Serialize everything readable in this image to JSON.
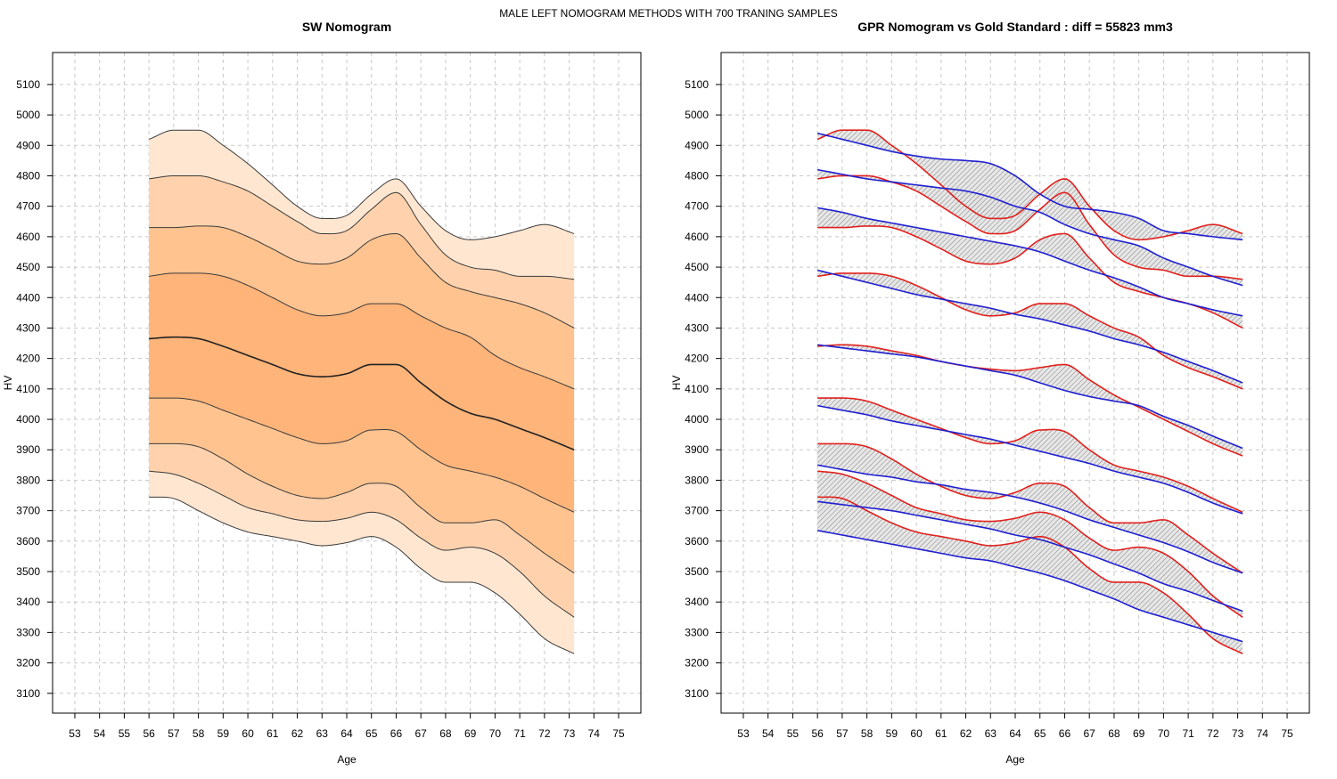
{
  "figure": {
    "main_title": "MALE LEFT NOMOGRAM METHODS WITH 700 TRANING SAMPLES"
  },
  "chart_data": [
    {
      "type": "area",
      "title": "SW Nomogram",
      "xlabel": "Age",
      "ylabel": "HV",
      "xlim": [
        52.1,
        75.9
      ],
      "ylim": [
        3035,
        5205
      ],
      "grid": true,
      "xticks": [
        53,
        54,
        55,
        56,
        57,
        58,
        59,
        60,
        61,
        62,
        63,
        64,
        65,
        66,
        67,
        68,
        69,
        70,
        71,
        72,
        73,
        74,
        75
      ],
      "yticks": [
        3100,
        3200,
        3300,
        3400,
        3500,
        3600,
        3700,
        3800,
        3900,
        4000,
        4100,
        4200,
        4300,
        4400,
        4500,
        4600,
        4700,
        4800,
        4900,
        5000,
        5100
      ],
      "fill_colors": [
        "#ffe6d0",
        "#ffd2ad",
        "#ffc38f",
        "#ffb47a"
      ],
      "x": [
        56,
        57,
        58,
        59,
        60,
        61,
        62,
        63,
        64,
        65,
        66,
        67,
        68,
        69,
        70,
        71,
        72,
        73.2
      ],
      "series": [
        {
          "values": [
            4920,
            4950,
            4950,
            4900,
            4840,
            4770,
            4700,
            4660,
            4670,
            4740,
            4790,
            4700,
            4620,
            4590,
            4600,
            4620,
            4640,
            4610
          ]
        },
        {
          "values": [
            4790,
            4800,
            4800,
            4780,
            4750,
            4700,
            4650,
            4610,
            4620,
            4690,
            4745,
            4640,
            4540,
            4500,
            4490,
            4470,
            4470,
            4460
          ]
        },
        {
          "values": [
            4630,
            4630,
            4635,
            4630,
            4600,
            4560,
            4520,
            4510,
            4530,
            4590,
            4610,
            4530,
            4450,
            4420,
            4400,
            4380,
            4350,
            4300
          ]
        },
        {
          "values": [
            4470,
            4480,
            4480,
            4470,
            4440,
            4400,
            4360,
            4340,
            4350,
            4380,
            4380,
            4340,
            4300,
            4270,
            4210,
            4170,
            4140,
            4100
          ]
        },
        {
          "values": [
            4265,
            4270,
            4265,
            4240,
            4210,
            4180,
            4150,
            4140,
            4150,
            4180,
            4180,
            4120,
            4060,
            4020,
            4000,
            3970,
            3940,
            3900
          ]
        },
        {
          "values": [
            4070,
            4070,
            4060,
            4030,
            4000,
            3970,
            3940,
            3920,
            3930,
            3965,
            3960,
            3900,
            3850,
            3830,
            3810,
            3780,
            3740,
            3695
          ]
        },
        {
          "values": [
            3920,
            3920,
            3910,
            3870,
            3820,
            3780,
            3750,
            3740,
            3760,
            3790,
            3780,
            3710,
            3660,
            3660,
            3670,
            3620,
            3560,
            3495
          ]
        },
        {
          "values": [
            3830,
            3820,
            3790,
            3750,
            3710,
            3690,
            3670,
            3665,
            3675,
            3695,
            3670,
            3610,
            3570,
            3580,
            3560,
            3500,
            3420,
            3350
          ]
        },
        {
          "values": [
            3745,
            3740,
            3700,
            3660,
            3630,
            3615,
            3600,
            3585,
            3595,
            3615,
            3580,
            3510,
            3465,
            3465,
            3430,
            3360,
            3280,
            3230
          ]
        }
      ]
    },
    {
      "type": "line",
      "title": "GPR Nomogram vs Gold Standard : diff = 55823 mm3",
      "xlabel": "Age",
      "ylabel": "HV",
      "xlim": [
        52.1,
        75.9
      ],
      "ylim": [
        3035,
        5205
      ],
      "grid": true,
      "xticks": [
        53,
        54,
        55,
        56,
        57,
        58,
        59,
        60,
        61,
        62,
        63,
        64,
        65,
        66,
        67,
        68,
        69,
        70,
        71,
        72,
        73,
        74,
        75
      ],
      "yticks": [
        3100,
        3200,
        3300,
        3400,
        3500,
        3600,
        3700,
        3800,
        3900,
        4000,
        4100,
        4200,
        4300,
        4400,
        4500,
        4600,
        4700,
        4800,
        4900,
        5000,
        5100
      ],
      "red_color": "#e0201c",
      "blue_color": "#1f1fd0",
      "x": [
        56,
        57,
        58,
        59,
        60,
        61,
        62,
        63,
        64,
        65,
        66,
        67,
        68,
        69,
        70,
        71,
        72,
        73.2
      ],
      "red_series": [
        {
          "values": [
            4920,
            4950,
            4950,
            4900,
            4840,
            4770,
            4700,
            4660,
            4670,
            4740,
            4790,
            4700,
            4620,
            4590,
            4600,
            4620,
            4640,
            4610
          ]
        },
        {
          "values": [
            4790,
            4800,
            4800,
            4780,
            4750,
            4700,
            4650,
            4610,
            4620,
            4690,
            4745,
            4640,
            4540,
            4500,
            4490,
            4470,
            4470,
            4460
          ]
        },
        {
          "values": [
            4630,
            4630,
            4635,
            4630,
            4600,
            4560,
            4520,
            4510,
            4530,
            4590,
            4610,
            4530,
            4450,
            4420,
            4400,
            4380,
            4350,
            4300
          ]
        },
        {
          "values": [
            4470,
            4480,
            4480,
            4470,
            4440,
            4400,
            4360,
            4340,
            4350,
            4380,
            4380,
            4340,
            4300,
            4270,
            4210,
            4170,
            4140,
            4100
          ]
        },
        {
          "values": [
            4240,
            4245,
            4240,
            4225,
            4210,
            4190,
            4175,
            4165,
            4160,
            4170,
            4180,
            4130,
            4080,
            4040,
            4000,
            3960,
            3920,
            3880
          ]
        },
        {
          "values": [
            4070,
            4070,
            4060,
            4030,
            4000,
            3970,
            3940,
            3920,
            3930,
            3965,
            3960,
            3900,
            3850,
            3830,
            3810,
            3780,
            3740,
            3695
          ]
        },
        {
          "values": [
            3920,
            3920,
            3910,
            3870,
            3820,
            3780,
            3750,
            3740,
            3760,
            3790,
            3780,
            3710,
            3660,
            3660,
            3670,
            3620,
            3560,
            3495
          ]
        },
        {
          "values": [
            3830,
            3820,
            3790,
            3750,
            3710,
            3690,
            3670,
            3665,
            3675,
            3695,
            3670,
            3610,
            3570,
            3580,
            3560,
            3500,
            3420,
            3350
          ]
        },
        {
          "values": [
            3745,
            3740,
            3700,
            3660,
            3630,
            3615,
            3600,
            3585,
            3595,
            3615,
            3580,
            3510,
            3465,
            3465,
            3430,
            3360,
            3280,
            3230
          ]
        }
      ],
      "blue_series": [
        {
          "values": [
            4940,
            4920,
            4900,
            4880,
            4865,
            4855,
            4850,
            4840,
            4800,
            4740,
            4700,
            4690,
            4680,
            4660,
            4620,
            4610,
            4600,
            4590
          ]
        },
        {
          "values": [
            4820,
            4805,
            4790,
            4780,
            4770,
            4760,
            4750,
            4730,
            4700,
            4680,
            4640,
            4610,
            4590,
            4570,
            4530,
            4500,
            4470,
            4440
          ]
        },
        {
          "values": [
            4695,
            4680,
            4660,
            4645,
            4630,
            4615,
            4600,
            4585,
            4570,
            4550,
            4520,
            4490,
            4465,
            4435,
            4400,
            4380,
            4360,
            4340
          ]
        },
        {
          "values": [
            4490,
            4470,
            4450,
            4430,
            4410,
            4395,
            4380,
            4365,
            4345,
            4330,
            4310,
            4290,
            4265,
            4245,
            4220,
            4190,
            4160,
            4120
          ]
        },
        {
          "values": [
            4245,
            4235,
            4225,
            4215,
            4205,
            4190,
            4175,
            4160,
            4145,
            4120,
            4095,
            4075,
            4060,
            4045,
            4010,
            3980,
            3945,
            3905
          ]
        },
        {
          "values": [
            4045,
            4030,
            4015,
            3995,
            3980,
            3965,
            3950,
            3935,
            3915,
            3895,
            3875,
            3855,
            3830,
            3810,
            3790,
            3760,
            3725,
            3690
          ]
        },
        {
          "values": [
            3850,
            3835,
            3820,
            3810,
            3795,
            3785,
            3770,
            3760,
            3745,
            3725,
            3700,
            3670,
            3645,
            3620,
            3595,
            3565,
            3530,
            3495
          ]
        },
        {
          "values": [
            3730,
            3720,
            3710,
            3700,
            3685,
            3670,
            3655,
            3640,
            3620,
            3605,
            3580,
            3555,
            3525,
            3495,
            3460,
            3435,
            3405,
            3370
          ]
        },
        {
          "values": [
            3635,
            3620,
            3605,
            3590,
            3575,
            3560,
            3545,
            3535,
            3515,
            3495,
            3470,
            3440,
            3410,
            3375,
            3350,
            3325,
            3300,
            3270
          ]
        }
      ]
    }
  ]
}
